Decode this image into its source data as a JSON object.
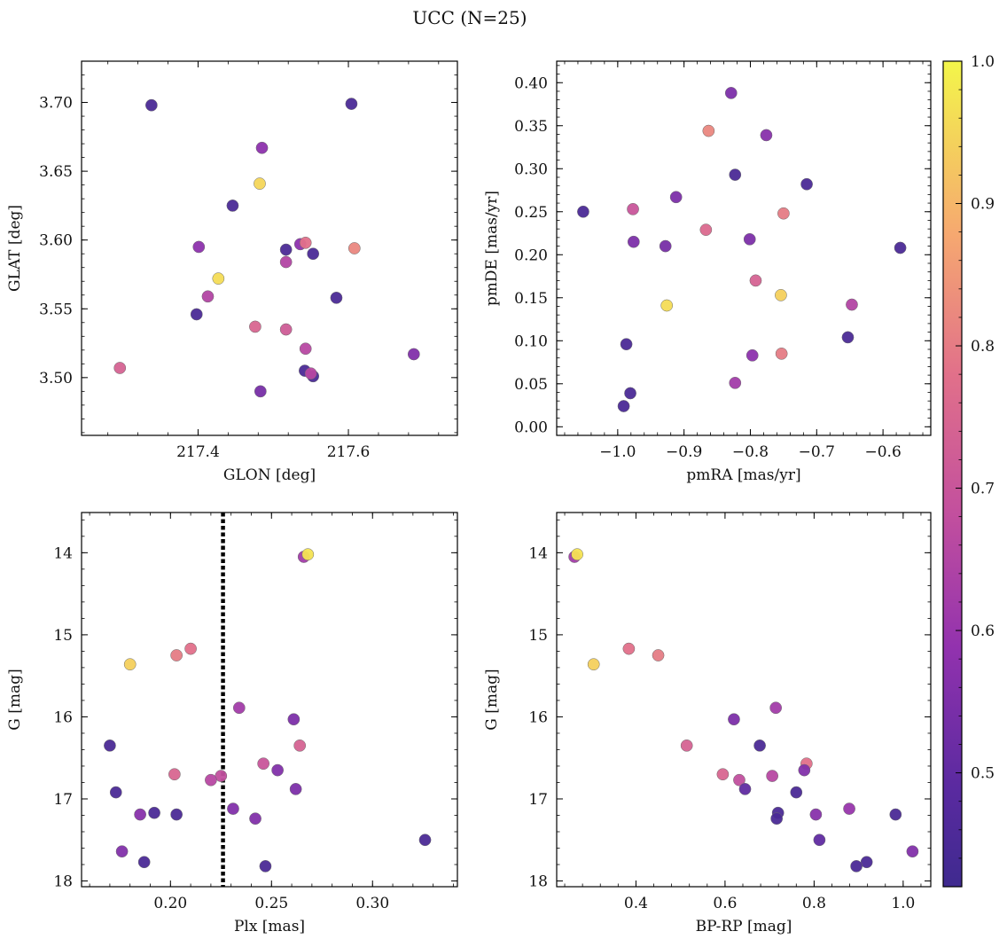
{
  "title": "UCC (N=25)",
  "colorbar": {
    "colormap": "plasma",
    "range": [
      0.42,
      1.0
    ],
    "ticks": [
      0.5,
      0.6,
      0.7,
      0.8,
      0.9,
      1.0
    ],
    "tick_labels": [
      "0.5",
      "0.6",
      "0.7",
      "0.8",
      "0.9",
      "1.0"
    ]
  },
  "chart_data": [
    {
      "type": "scatter",
      "name": "glon-glat",
      "xlabel": "GLON [deg]",
      "ylabel": "GLAT [deg]",
      "xlim": [
        217.245,
        217.745
      ],
      "ylim": [
        3.458,
        3.73
      ],
      "xticks": [
        217.4,
        217.6
      ],
      "xtick_labels": [
        "217.4",
        "217.6"
      ],
      "yticks": [
        3.5,
        3.55,
        3.6,
        3.65,
        3.7
      ],
      "ytick_labels": [
        "3.50",
        "3.55",
        "3.60",
        "3.65",
        "3.70"
      ],
      "invert_y": false,
      "x": [
        217.338,
        217.604,
        217.485,
        217.482,
        217.446,
        217.401,
        217.517,
        217.536,
        217.543,
        217.608,
        217.553,
        217.517,
        217.427,
        217.413,
        217.584,
        217.398,
        217.476,
        217.517,
        217.543,
        217.296,
        217.542,
        217.553,
        217.55,
        217.687,
        217.483
      ],
      "y": [
        3.698,
        3.699,
        3.667,
        3.641,
        3.625,
        3.595,
        3.593,
        3.597,
        3.598,
        3.594,
        3.59,
        3.584,
        3.572,
        3.559,
        3.558,
        3.546,
        3.537,
        3.535,
        3.521,
        3.507,
        3.505,
        3.501,
        3.503,
        3.517,
        3.49
      ],
      "c": [
        0.45,
        0.45,
        0.58,
        0.95,
        0.45,
        0.58,
        0.45,
        0.58,
        0.78,
        0.82,
        0.45,
        0.65,
        0.96,
        0.65,
        0.45,
        0.45,
        0.75,
        0.72,
        0.66,
        0.74,
        0.45,
        0.45,
        0.66,
        0.56,
        0.54
      ]
    },
    {
      "type": "scatter",
      "name": "pmra-pmde",
      "xlabel": "pmRA [mas/yr]",
      "ylabel": "pmDE [mas/yr]",
      "xlim": [
        -1.092,
        -0.528
      ],
      "ylim": [
        -0.01,
        0.425
      ],
      "xticks": [
        -1.0,
        -0.9,
        -0.8,
        -0.7,
        -0.6
      ],
      "xtick_labels": [
        "−1.0",
        "−0.9",
        "−0.8",
        "−0.7",
        "−0.6"
      ],
      "yticks": [
        0.0,
        0.05,
        0.1,
        0.15,
        0.2,
        0.25,
        0.3,
        0.35,
        0.4
      ],
      "ytick_labels": [
        "0.00",
        "0.05",
        "0.10",
        "0.15",
        "0.20",
        "0.25",
        "0.30",
        "0.35",
        "0.40"
      ],
      "invert_y": false,
      "x": [
        -0.829,
        -0.863,
        -0.776,
        -0.823,
        -0.715,
        -1.052,
        -0.977,
        -0.912,
        -0.75,
        -0.976,
        -0.928,
        -0.867,
        -0.801,
        -0.574,
        -0.792,
        -0.754,
        -0.926,
        -0.647,
        -0.987,
        -0.653,
        -0.753,
        -0.797,
        -0.823,
        -0.981,
        -0.991
      ],
      "y": [
        0.388,
        0.344,
        0.339,
        0.293,
        0.282,
        0.25,
        0.253,
        0.267,
        0.248,
        0.215,
        0.21,
        0.229,
        0.218,
        0.208,
        0.17,
        0.153,
        0.141,
        0.142,
        0.096,
        0.104,
        0.085,
        0.083,
        0.051,
        0.039,
        0.024
      ],
      "c": [
        0.55,
        0.82,
        0.57,
        0.45,
        0.45,
        0.45,
        0.7,
        0.55,
        0.8,
        0.55,
        0.54,
        0.76,
        0.55,
        0.45,
        0.74,
        0.94,
        0.96,
        0.65,
        0.45,
        0.45,
        0.8,
        0.58,
        0.62,
        0.45,
        0.45
      ]
    },
    {
      "type": "scatter",
      "name": "plx-g",
      "xlabel": "Plx [mas]",
      "ylabel": "G [mag]",
      "xlim": [
        0.156,
        0.342
      ],
      "ylim": [
        18.07,
        13.51
      ],
      "xticks": [
        0.2,
        0.25,
        0.3
      ],
      "xtick_labels": [
        "0.20",
        "0.25",
        "0.30"
      ],
      "yticks": [
        14,
        15,
        16,
        17,
        18
      ],
      "ytick_labels": [
        "14",
        "15",
        "16",
        "17",
        "18"
      ],
      "invert_y": true,
      "vline": {
        "x": 0.226,
        "style": "dotted",
        "color": "#000000"
      },
      "x": [
        0.266,
        0.268,
        0.18,
        0.203,
        0.21,
        0.234,
        0.261,
        0.17,
        0.264,
        0.246,
        0.253,
        0.202,
        0.225,
        0.22,
        0.173,
        0.262,
        0.231,
        0.192,
        0.185,
        0.203,
        0.242,
        0.326,
        0.176,
        0.187,
        0.247
      ],
      "y": [
        14.05,
        14.02,
        15.36,
        15.25,
        15.17,
        15.89,
        16.03,
        16.35,
        16.35,
        16.57,
        16.65,
        16.7,
        16.72,
        16.77,
        16.92,
        16.88,
        17.12,
        17.17,
        17.19,
        17.19,
        17.24,
        17.5,
        17.64,
        17.77,
        17.82
      ],
      "c": [
        0.62,
        0.97,
        0.94,
        0.8,
        0.78,
        0.62,
        0.55,
        0.45,
        0.74,
        0.7,
        0.56,
        0.75,
        0.68,
        0.66,
        0.45,
        0.55,
        0.56,
        0.45,
        0.57,
        0.45,
        0.56,
        0.45,
        0.56,
        0.45,
        0.45
      ]
    },
    {
      "type": "scatter",
      "name": "bprp-g",
      "xlabel": "BP-RP [mag]",
      "ylabel": "G [mag]",
      "xlim": [
        0.222,
        1.062
      ],
      "ylim": [
        18.07,
        13.51
      ],
      "xticks": [
        0.4,
        0.6,
        0.8,
        1.0
      ],
      "xtick_labels": [
        "0.4",
        "0.6",
        "0.8",
        "1.0"
      ],
      "yticks": [
        14,
        15,
        16,
        17,
        18
      ],
      "ytick_labels": [
        "14",
        "15",
        "16",
        "17",
        "18"
      ],
      "invert_y": true,
      "x": [
        0.262,
        0.268,
        0.305,
        0.384,
        0.45,
        0.714,
        0.62,
        0.678,
        0.514,
        0.783,
        0.595,
        0.778,
        0.632,
        0.706,
        0.645,
        0.76,
        0.879,
        0.719,
        0.804,
        0.983,
        0.716,
        0.812,
        1.021,
        0.918,
        0.895
      ],
      "y": [
        14.05,
        14.02,
        15.36,
        15.17,
        15.25,
        15.89,
        16.03,
        16.35,
        16.35,
        16.57,
        16.7,
        16.65,
        16.77,
        16.72,
        16.88,
        16.92,
        17.12,
        17.17,
        17.19,
        17.19,
        17.24,
        17.5,
        17.64,
        17.77,
        17.82
      ],
      "c": [
        0.62,
        0.97,
        0.94,
        0.78,
        0.8,
        0.62,
        0.55,
        0.45,
        0.74,
        0.78,
        0.75,
        0.56,
        0.68,
        0.66,
        0.5,
        0.45,
        0.6,
        0.45,
        0.57,
        0.45,
        0.45,
        0.5,
        0.56,
        0.45,
        0.45
      ]
    }
  ]
}
